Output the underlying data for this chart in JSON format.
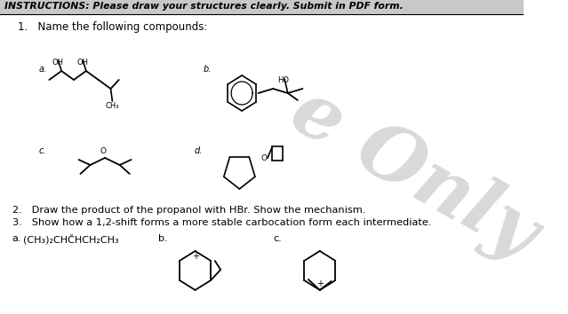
{
  "page_bg": "#ffffff",
  "header_bg": "#c8c8c8",
  "title_text": "INSTRUCTIONS: Please draw your structures clearly. Submit in PDF form.",
  "q1_text": "1.   Name the following compounds:",
  "q2_text": "2.   Draw the product of the propanol with HBr. Show the mechanism.",
  "q3_text": "3.   Show how a 1,2-shift forms a more stable carbocation form each intermediate.",
  "watermark": "e Only",
  "label_a_top": "a.",
  "label_b_top": "b.",
  "label_c_bot": "c.",
  "label_d_bot": "d.",
  "formula_a": "(CH₃)₂CHČHCH₂CH₃",
  "label_qa": "a.",
  "label_qb": "b.",
  "label_qc": "c."
}
